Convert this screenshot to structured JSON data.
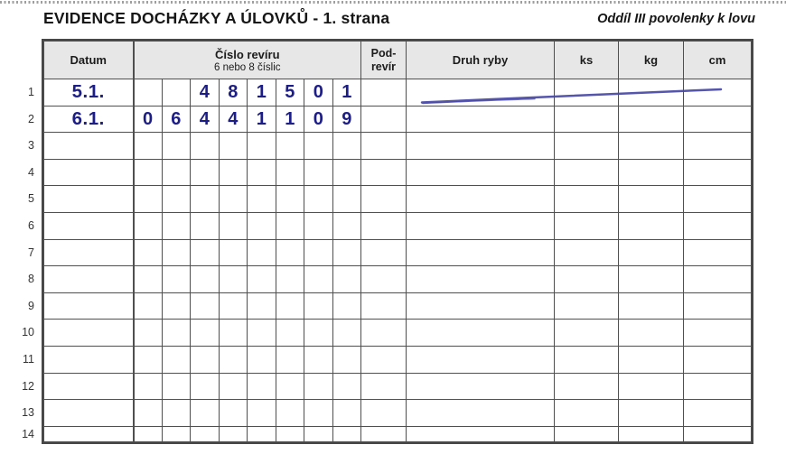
{
  "page": {
    "title": "EVIDENCE DOCHÁZKY A ÚLOVKŮ - 1. strana",
    "section_label": "Oddíl III povolenky k lovu"
  },
  "table": {
    "headers": {
      "datum": "Datum",
      "cislo_reviru_line1": "Číslo revíru",
      "cislo_reviru_line2": "6 nebo 8 číslic",
      "pod_revir_line1": "Pod-",
      "pod_revir_line2": "revír",
      "druh_ryby": "Druh ryby",
      "ks": "ks",
      "kg": "kg",
      "cm": "cm"
    },
    "rows": [
      {
        "num": "1",
        "datum": "5.1.",
        "digits": [
          "",
          "",
          "4",
          "8",
          "1",
          "5",
          "0",
          "1"
        ],
        "pod": "",
        "druh": "",
        "ks": "",
        "kg": "",
        "cm": ""
      },
      {
        "num": "2",
        "datum": "6.1.",
        "digits": [
          "0",
          "6",
          "4",
          "4",
          "1",
          "1",
          "0",
          "9"
        ],
        "pod": "",
        "druh": "",
        "ks": "",
        "kg": "",
        "cm": ""
      },
      {
        "num": "3",
        "datum": "",
        "digits": [
          "",
          "",
          "",
          "",
          "",
          "",
          "",
          ""
        ],
        "pod": "",
        "druh": "",
        "ks": "",
        "kg": "",
        "cm": ""
      },
      {
        "num": "4",
        "datum": "",
        "digits": [
          "",
          "",
          "",
          "",
          "",
          "",
          "",
          ""
        ],
        "pod": "",
        "druh": "",
        "ks": "",
        "kg": "",
        "cm": ""
      },
      {
        "num": "5",
        "datum": "",
        "digits": [
          "",
          "",
          "",
          "",
          "",
          "",
          "",
          ""
        ],
        "pod": "",
        "druh": "",
        "ks": "",
        "kg": "",
        "cm": ""
      },
      {
        "num": "6",
        "datum": "",
        "digits": [
          "",
          "",
          "",
          "",
          "",
          "",
          "",
          ""
        ],
        "pod": "",
        "druh": "",
        "ks": "",
        "kg": "",
        "cm": ""
      },
      {
        "num": "7",
        "datum": "",
        "digits": [
          "",
          "",
          "",
          "",
          "",
          "",
          "",
          ""
        ],
        "pod": "",
        "druh": "",
        "ks": "",
        "kg": "",
        "cm": ""
      },
      {
        "num": "8",
        "datum": "",
        "digits": [
          "",
          "",
          "",
          "",
          "",
          "",
          "",
          ""
        ],
        "pod": "",
        "druh": "",
        "ks": "",
        "kg": "",
        "cm": ""
      },
      {
        "num": "9",
        "datum": "",
        "digits": [
          "",
          "",
          "",
          "",
          "",
          "",
          "",
          ""
        ],
        "pod": "",
        "druh": "",
        "ks": "",
        "kg": "",
        "cm": ""
      },
      {
        "num": "10",
        "datum": "",
        "digits": [
          "",
          "",
          "",
          "",
          "",
          "",
          "",
          ""
        ],
        "pod": "",
        "druh": "",
        "ks": "",
        "kg": "",
        "cm": ""
      },
      {
        "num": "11",
        "datum": "",
        "digits": [
          "",
          "",
          "",
          "",
          "",
          "",
          "",
          ""
        ],
        "pod": "",
        "druh": "",
        "ks": "",
        "kg": "",
        "cm": ""
      },
      {
        "num": "12",
        "datum": "",
        "digits": [
          "",
          "",
          "",
          "",
          "",
          "",
          "",
          ""
        ],
        "pod": "",
        "druh": "",
        "ks": "",
        "kg": "",
        "cm": ""
      },
      {
        "num": "13",
        "datum": "",
        "digits": [
          "",
          "",
          "",
          "",
          "",
          "",
          "",
          ""
        ],
        "pod": "",
        "druh": "",
        "ks": "",
        "kg": "",
        "cm": ""
      },
      {
        "num": "14",
        "datum": "",
        "digits": [
          "",
          "",
          "",
          "",
          "",
          "",
          "",
          ""
        ],
        "pod": "",
        "druh": "",
        "ks": "",
        "kg": "",
        "cm": ""
      }
    ]
  },
  "annotations": {
    "pen_stroke": {
      "description": "handwritten blue pen line crossing row 1 from the Druh ryby column to the cm column",
      "color": "#4646a4"
    }
  },
  "colors": {
    "ink": "#1d1d87",
    "grid": "#4f4f4f",
    "header_bg": "#e7e7e7",
    "pen": "#4646a4"
  }
}
